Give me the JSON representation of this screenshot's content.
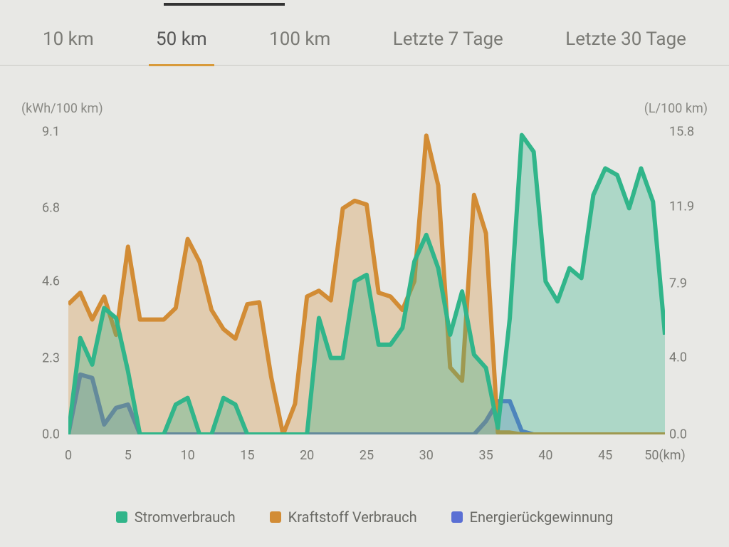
{
  "tabs": [
    {
      "label": "10 km",
      "active": false
    },
    {
      "label": "50 km",
      "active": true
    },
    {
      "label": "100 km",
      "active": false
    },
    {
      "label": "Letzte 7 Tage",
      "active": false
    },
    {
      "label": "Letzte 30 Tage",
      "active": false
    }
  ],
  "chart": {
    "type": "area",
    "background_color": "#e8e8e5",
    "grid_color": "#c8c8c3",
    "axis_text_color": "#7a7a75",
    "tick_fontsize": 18,
    "label_fontsize": 18,
    "left_axis": {
      "label": "(kWh/100 km)",
      "min": 0.0,
      "max": 9.1,
      "ticks": [
        0.0,
        2.3,
        4.6,
        6.8,
        9.1
      ]
    },
    "right_axis": {
      "label": "(L/100 km)",
      "min": 0.0,
      "max": 15.8,
      "ticks": [
        0.0,
        4.0,
        7.9,
        11.9,
        15.8
      ]
    },
    "x_axis": {
      "label": "(km)",
      "min": 0,
      "max": 50,
      "ticks": [
        0,
        5,
        10,
        15,
        20,
        25,
        30,
        35,
        40,
        45,
        50
      ]
    },
    "series": [
      {
        "name": "Stromverbrauch",
        "axis": "left",
        "color": "#31b58a",
        "fill_opacity": 0.32,
        "line_width": 2.5,
        "x": [
          0,
          1,
          2,
          3,
          4,
          5,
          6,
          7,
          8,
          9,
          10,
          11,
          12,
          13,
          14,
          15,
          16,
          17,
          18,
          19,
          20,
          21,
          22,
          23,
          24,
          25,
          26,
          27,
          28,
          29,
          30,
          31,
          32,
          33,
          34,
          35,
          36,
          37,
          38,
          39,
          40,
          41,
          42,
          43,
          44,
          45,
          46,
          47,
          48,
          49,
          50
        ],
        "y": [
          0,
          2.9,
          2.1,
          3.8,
          3.5,
          1.9,
          0,
          0,
          0,
          0.9,
          1.1,
          0,
          0,
          1.1,
          0.9,
          0,
          0,
          0,
          0,
          0,
          0,
          3.5,
          2.3,
          2.3,
          4.6,
          4.8,
          2.7,
          2.7,
          3.2,
          5.2,
          6.0,
          5.0,
          3.0,
          4.3,
          2.4,
          2.0,
          0.2,
          3.5,
          9.0,
          8.5,
          4.6,
          4.0,
          5.0,
          4.7,
          7.2,
          8.0,
          7.8,
          6.8,
          8.0,
          7.0,
          3.0
        ]
      },
      {
        "name": "Kraftstoff Verbrauch",
        "axis": "right",
        "color": "#d28c35",
        "fill_opacity": 0.3,
        "line_width": 2.5,
        "x": [
          0,
          1,
          2,
          3,
          4,
          5,
          6,
          7,
          8,
          9,
          10,
          11,
          12,
          13,
          14,
          15,
          16,
          17,
          18,
          19,
          20,
          21,
          22,
          23,
          24,
          25,
          26,
          27,
          28,
          29,
          30,
          31,
          32,
          33,
          34,
          35,
          36,
          37,
          38,
          39,
          40,
          41,
          42,
          43,
          44,
          45,
          46,
          47,
          48,
          49,
          50
        ],
        "y": [
          6.8,
          7.4,
          6.0,
          7.2,
          5.2,
          9.8,
          6.0,
          6.0,
          6.0,
          6.6,
          10.2,
          9.0,
          6.5,
          5.5,
          5.0,
          6.8,
          6.9,
          3.0,
          0,
          1.6,
          7.2,
          7.5,
          7.0,
          11.8,
          12.2,
          12.0,
          7.4,
          7.2,
          6.5,
          8.0,
          15.6,
          13.0,
          3.5,
          2.8,
          12.5,
          10.5,
          0.1,
          0.1,
          0,
          0,
          0,
          0,
          0,
          0,
          0,
          0,
          0,
          0,
          0,
          0,
          0
        ]
      },
      {
        "name": "Energierückgewinnung",
        "axis": "left",
        "color": "#5a6fd4",
        "fill_opacity": 0.28,
        "line_width": 2.5,
        "x": [
          0,
          1,
          2,
          3,
          4,
          5,
          6,
          7,
          8,
          9,
          10,
          11,
          12,
          13,
          14,
          15,
          16,
          17,
          18,
          19,
          20,
          21,
          22,
          23,
          24,
          25,
          26,
          27,
          28,
          29,
          30,
          31,
          32,
          33,
          34,
          35,
          36,
          37,
          38,
          39,
          40,
          41,
          42,
          43,
          44,
          45,
          46,
          47,
          48,
          49,
          50
        ],
        "y": [
          0,
          1.8,
          1.7,
          0.3,
          0.8,
          0.9,
          0,
          0,
          0,
          0,
          0,
          0,
          0,
          0,
          0,
          0,
          0,
          0,
          0,
          0,
          0,
          0,
          0,
          0,
          0,
          0,
          0,
          0,
          0,
          0,
          0,
          0,
          0,
          0,
          0,
          0.4,
          1.0,
          1.0,
          0.1,
          0,
          0,
          0,
          0,
          0,
          0,
          0,
          0,
          0,
          0,
          0,
          0
        ]
      }
    ],
    "legend": [
      {
        "label": "Stromverbrauch",
        "color": "#31b58a"
      },
      {
        "label": "Kraftstoff Verbrauch",
        "color": "#d28c35"
      },
      {
        "label": "Energierückgewinnung",
        "color": "#5a6fd4"
      }
    ]
  }
}
